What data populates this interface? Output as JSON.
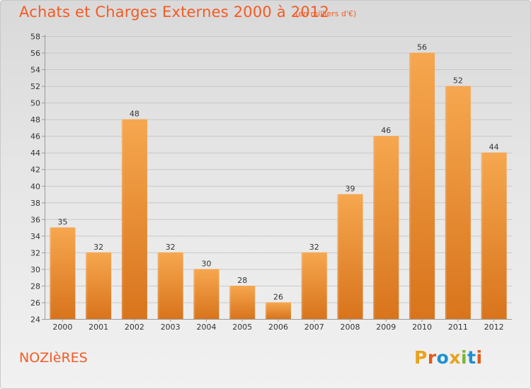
{
  "header": {
    "title": "Achats et Charges Externes 2000 à 2012",
    "subtitle": "(en milliers d'€)"
  },
  "footer": {
    "commune": "NOZIèRES",
    "logo_text": "Proxiti",
    "logo_colors": [
      "#e8a21b",
      "#e05a1c",
      "#1f8fd0",
      "#e8a21b",
      "#7ab532",
      "#1f8fd0",
      "#e05a1c"
    ]
  },
  "colors": {
    "title": "#f45b24",
    "bar_light": "#f6a74f",
    "bar_dark": "#d8741c",
    "axis": "#9a9a9a",
    "grid": "#c8c8c8",
    "label": "#333333"
  },
  "chart_data": {
    "type": "bar",
    "categories": [
      "2000",
      "2001",
      "2002",
      "2003",
      "2004",
      "2005",
      "2006",
      "2007",
      "2008",
      "2009",
      "2010",
      "2011",
      "2012"
    ],
    "values": [
      35,
      32,
      48,
      32,
      30,
      28,
      26,
      32,
      39,
      46,
      56,
      52,
      44
    ],
    "data_labels": [
      "35",
      "32",
      "48",
      "32",
      "30",
      "28",
      "26",
      "32",
      "39",
      "46",
      "56",
      "52",
      "44"
    ],
    "ylim": [
      24,
      58
    ],
    "yticks": [
      24,
      26,
      28,
      30,
      32,
      34,
      36,
      38,
      40,
      42,
      44,
      46,
      48,
      50,
      52,
      54,
      56,
      58
    ],
    "grid": true,
    "title": "Achats et Charges Externes 2000 à 2012",
    "xlabel": "",
    "ylabel": ""
  }
}
